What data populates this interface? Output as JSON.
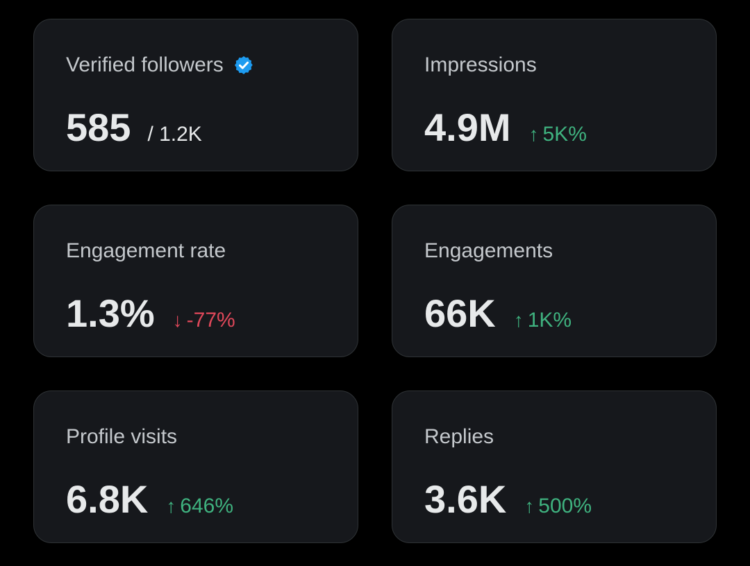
{
  "colors": {
    "background": "#000000",
    "card_background": "#16181c",
    "card_border": "#2f3336",
    "label": "#c4c8cc",
    "value": "#e7e9ea",
    "positive": "#3fb27f",
    "negative": "#e0485a",
    "verified_badge": "#1d9bf0"
  },
  "cards": [
    {
      "label": "Verified followers",
      "icon": "verified-badge-icon",
      "value": "585",
      "suffix": "/ 1.2K"
    },
    {
      "label": "Impressions",
      "value": "4.9M",
      "change_arrow": "↑",
      "change": "5K%",
      "trend": "up"
    },
    {
      "label": "Engagement rate",
      "value": "1.3%",
      "change_arrow": "↓",
      "change": "-77%",
      "trend": "down"
    },
    {
      "label": "Engagements",
      "value": "66K",
      "change_arrow": "↑",
      "change": "1K%",
      "trend": "up"
    },
    {
      "label": "Profile visits",
      "value": "6.8K",
      "change_arrow": "↑",
      "change": "646%",
      "trend": "up"
    },
    {
      "label": "Replies",
      "value": "3.6K",
      "change_arrow": "↑",
      "change": "500%",
      "trend": "up"
    }
  ]
}
